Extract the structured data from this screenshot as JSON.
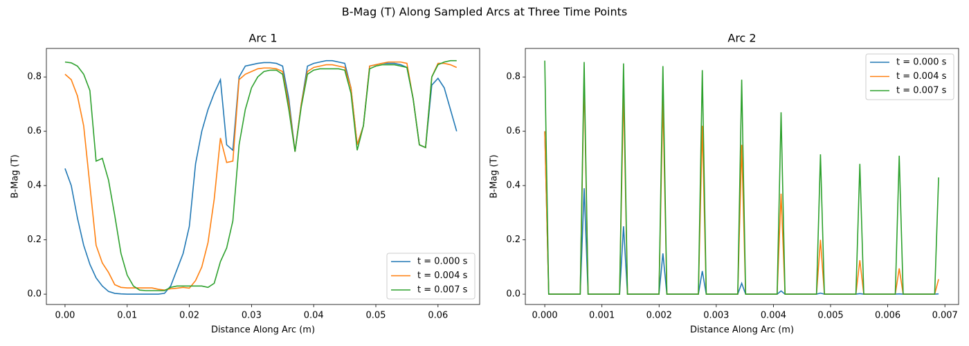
{
  "title": "B-Mag (T) Along Sampled Arcs at Three Time Points",
  "chart_data": [
    {
      "type": "line",
      "title": "Arc 1",
      "xlabel": "Distance Along Arc (m)",
      "ylabel": "B-Mag (T)",
      "legend": "lower right",
      "x": [
        0,
        0.001,
        0.002,
        0.003,
        0.004,
        0.005,
        0.006,
        0.007,
        0.008,
        0.009,
        0.01,
        0.011,
        0.012,
        0.013,
        0.014,
        0.015,
        0.016,
        0.017,
        0.018,
        0.019,
        0.02,
        0.021,
        0.022,
        0.023,
        0.024,
        0.025,
        0.026,
        0.027,
        0.028,
        0.029,
        0.03,
        0.031,
        0.032,
        0.033,
        0.034,
        0.035,
        0.036,
        0.037,
        0.038,
        0.039,
        0.04,
        0.041,
        0.042,
        0.043,
        0.044,
        0.045,
        0.046,
        0.047,
        0.048,
        0.049,
        0.05,
        0.051,
        0.052,
        0.053,
        0.054,
        0.055,
        0.056,
        0.057,
        0.058,
        0.059,
        0.06,
        0.061,
        0.062,
        0.063
      ],
      "series": [
        {
          "name": "t = 0.000 s",
          "color": "#1f77b4",
          "values": [
            0.463,
            0.4,
            0.28,
            0.18,
            0.11,
            0.06,
            0.03,
            0.01,
            0.003,
            0.001,
            0,
            0,
            0,
            0,
            0,
            0,
            0.003,
            0.03,
            0.09,
            0.15,
            0.25,
            0.48,
            0.6,
            0.68,
            0.74,
            0.79,
            0.55,
            0.53,
            0.8,
            0.84,
            0.845,
            0.85,
            0.853,
            0.853,
            0.85,
            0.84,
            0.72,
            0.525,
            0.7,
            0.84,
            0.85,
            0.855,
            0.86,
            0.86,
            0.855,
            0.85,
            0.76,
            0.55,
            0.62,
            0.84,
            0.845,
            0.85,
            0.85,
            0.85,
            0.845,
            0.835,
            0.72,
            0.55,
            0.54,
            0.77,
            0.795,
            0.76,
            0.68,
            0.6
          ]
        },
        {
          "name": "t = 0.004 s",
          "color": "#ff7f0e",
          "values": [
            0.81,
            0.79,
            0.73,
            0.62,
            0.4,
            0.18,
            0.115,
            0.08,
            0.035,
            0.025,
            0.023,
            0.023,
            0.023,
            0.023,
            0.023,
            0.018,
            0.015,
            0.02,
            0.022,
            0.025,
            0.022,
            0.05,
            0.1,
            0.19,
            0.35,
            0.575,
            0.485,
            0.49,
            0.79,
            0.81,
            0.82,
            0.83,
            0.833,
            0.833,
            0.83,
            0.82,
            0.7,
            0.525,
            0.7,
            0.82,
            0.835,
            0.84,
            0.845,
            0.845,
            0.84,
            0.835,
            0.76,
            0.55,
            0.62,
            0.84,
            0.845,
            0.85,
            0.855,
            0.855,
            0.855,
            0.85,
            0.72,
            0.55,
            0.54,
            0.8,
            0.85,
            0.85,
            0.845,
            0.835
          ]
        },
        {
          "name": "t = 0.007 s",
          "color": "#2ca02c",
          "values": [
            0.855,
            0.852,
            0.84,
            0.81,
            0.75,
            0.49,
            0.5,
            0.42,
            0.29,
            0.15,
            0.07,
            0.03,
            0.015,
            0.013,
            0.013,
            0.013,
            0.013,
            0.025,
            0.03,
            0.03,
            0.03,
            0.03,
            0.03,
            0.025,
            0.04,
            0.12,
            0.17,
            0.27,
            0.55,
            0.68,
            0.76,
            0.8,
            0.82,
            0.825,
            0.825,
            0.81,
            0.68,
            0.525,
            0.69,
            0.81,
            0.825,
            0.83,
            0.83,
            0.83,
            0.83,
            0.825,
            0.74,
            0.53,
            0.62,
            0.83,
            0.84,
            0.845,
            0.845,
            0.845,
            0.84,
            0.835,
            0.72,
            0.55,
            0.54,
            0.8,
            0.845,
            0.855,
            0.86,
            0.86
          ]
        }
      ],
      "xlim": [
        -0.003,
        0.0667
      ],
      "ylim": [
        -0.038,
        0.905
      ],
      "xticks": [
        {
          "value": 0,
          "label": "0.00"
        },
        {
          "value": 0.01,
          "label": "0.01"
        },
        {
          "value": 0.02,
          "label": "0.02"
        },
        {
          "value": 0.03,
          "label": "0.03"
        },
        {
          "value": 0.04,
          "label": "0.04"
        },
        {
          "value": 0.05,
          "label": "0.05"
        },
        {
          "value": 0.06,
          "label": "0.06"
        }
      ],
      "yticks": [
        {
          "value": 0,
          "label": "0.0"
        },
        0.2,
        0.4,
        0.6,
        0.8
      ]
    },
    {
      "type": "line",
      "title": "Arc 2",
      "xlabel": "Distance Along Arc (m)",
      "ylabel": "B-Mag (T)",
      "legend": "upper right",
      "x": [
        0,
        6.9e-05,
        0.00062,
        0.000689,
        0.000758,
        0.001309,
        0.001378,
        0.001447,
        0.001998,
        0.002067,
        0.002136,
        0.002687,
        0.002756,
        0.002825,
        0.003376,
        0.003445,
        0.003514,
        0.004065,
        0.004134,
        0.004203,
        0.004754,
        0.004823,
        0.004892,
        0.005443,
        0.005512,
        0.005581,
        0.006132,
        0.006201,
        0.00627,
        0.006821,
        0.00689
      ],
      "series": [
        {
          "name": "t = 0.000 s",
          "color": "#1f77b4",
          "values": [
            0.6,
            0,
            0,
            0.39,
            0,
            0,
            0.25,
            0,
            0,
            0.15,
            0,
            0,
            0.085,
            0,
            0,
            0.04,
            0,
            0,
            0.012,
            0,
            0,
            0.004,
            0,
            0,
            0.002,
            0,
            0,
            0.001,
            0,
            0,
            0.001
          ]
        },
        {
          "name": "t = 0.004 s",
          "color": "#ff7f0e",
          "values": [
            0.6,
            0,
            0,
            0.8,
            0,
            0,
            0.75,
            0,
            0,
            0.72,
            0,
            0,
            0.62,
            0,
            0,
            0.55,
            0,
            0,
            0.37,
            0,
            0,
            0.2,
            0,
            0,
            0.125,
            0,
            0,
            0.095,
            0,
            0,
            0.055
          ]
        },
        {
          "name": "t = 0.007 s",
          "color": "#2ca02c",
          "values": [
            0.86,
            0,
            0,
            0.855,
            0,
            0,
            0.85,
            0,
            0,
            0.84,
            0,
            0,
            0.825,
            0,
            0,
            0.79,
            0,
            0,
            0.67,
            0,
            0,
            0.515,
            0,
            0,
            0.48,
            0,
            0,
            0.51,
            0,
            0,
            0.43
          ]
        }
      ],
      "xlim": [
        -0.00034,
        0.00724
      ],
      "ylim": [
        -0.038,
        0.905
      ],
      "xticks": [
        {
          "value": 0,
          "label": "0.000"
        },
        {
          "value": 0.001,
          "label": "0.001"
        },
        {
          "value": 0.002,
          "label": "0.002"
        },
        {
          "value": 0.003,
          "label": "0.003"
        },
        {
          "value": 0.004,
          "label": "0.004"
        },
        {
          "value": 0.005,
          "label": "0.005"
        },
        {
          "value": 0.006,
          "label": "0.006"
        },
        {
          "value": 0.007,
          "label": "0.007"
        }
      ],
      "yticks": [
        {
          "value": 0,
          "label": "0.0"
        },
        0.2,
        0.4,
        0.6,
        0.8
      ]
    }
  ]
}
